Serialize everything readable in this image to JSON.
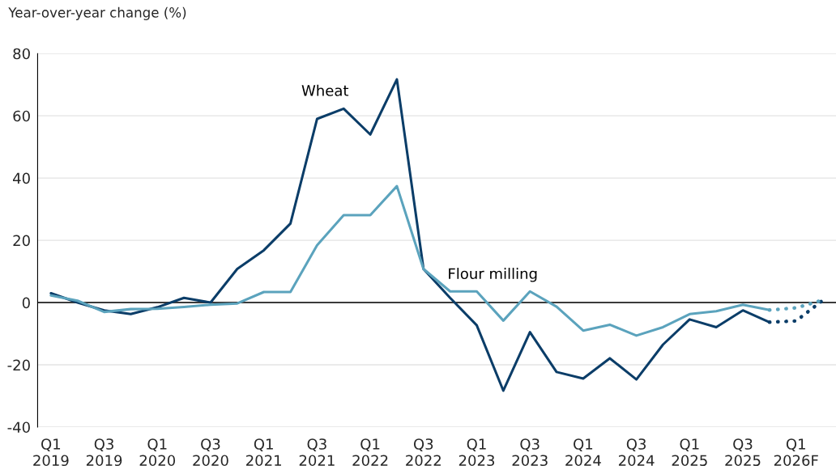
{
  "chart_data": {
    "type": "line",
    "ylabel": "Year-over-year change (%)",
    "categories": [
      "Q1\n2019",
      null,
      "Q3\n2019",
      null,
      "Q1\n2020",
      null,
      "Q3\n2020",
      null,
      "Q1\n2021",
      null,
      "Q3\n2021",
      null,
      "Q1\n2022",
      null,
      "Q3\n2022",
      null,
      "Q1\n2023",
      null,
      "Q3\n2023",
      null,
      "Q1\n2024",
      null,
      "Q3\n2024",
      null,
      "Q1\n2025",
      null,
      "Q3\n2025",
      null,
      "Q1\n2026F",
      null
    ],
    "series": [
      {
        "name": "Wheat",
        "color": "#0b3d68",
        "line_style": "solid",
        "values": [
          3,
          0,
          -2.5,
          -3.7,
          -1.5,
          1.5,
          0,
          10.8,
          16.8,
          25.4,
          59,
          62.3,
          54,
          71.7,
          10.8,
          1.5,
          -7.3,
          -28.3,
          -9.5,
          -22.3,
          -24.4,
          -17.9,
          -24.7,
          -13.5,
          -5.4,
          -7.9,
          -2.5,
          -6.3,
          null,
          null
        ]
      },
      {
        "name": "Flour milling",
        "color": "#5ba3bd",
        "line_style": "solid",
        "values": [
          2.3,
          0.6,
          -3,
          -2.1,
          -2,
          -1.4,
          -0.7,
          -0.3,
          3.4,
          3.4,
          18.4,
          28.1,
          28.1,
          37.4,
          10.8,
          3.6,
          3.6,
          -5.8,
          3.6,
          -1.3,
          -9,
          -7.1,
          -10.6,
          -7.9,
          -3.7,
          -2.8,
          -0.7,
          -2.4,
          null,
          null
        ]
      },
      {
        "color": "#0b3d68",
        "line_style": "dotted",
        "values": [
          null,
          null,
          null,
          null,
          null,
          null,
          null,
          null,
          null,
          null,
          null,
          null,
          null,
          null,
          null,
          null,
          null,
          null,
          null,
          null,
          null,
          null,
          null,
          null,
          null,
          null,
          null,
          -6.3,
          -5.9,
          0.7
        ]
      },
      {
        "color": "#5ba3bd",
        "line_style": "dotted",
        "values": [
          null,
          null,
          null,
          null,
          null,
          null,
          null,
          null,
          null,
          null,
          null,
          null,
          null,
          null,
          null,
          null,
          null,
          null,
          null,
          null,
          null,
          null,
          null,
          null,
          null,
          null,
          null,
          -2.4,
          -1.7,
          0.8
        ]
      }
    ],
    "ylim": [
      -40,
      80
    ],
    "yticks": [
      -40,
      -20,
      0,
      20,
      40,
      60,
      80
    ],
    "grid": "y",
    "legend": false,
    "ref_lines": [
      {
        "axis": "y",
        "value": 0,
        "color": "#000000",
        "line_style": "solid"
      }
    ]
  }
}
